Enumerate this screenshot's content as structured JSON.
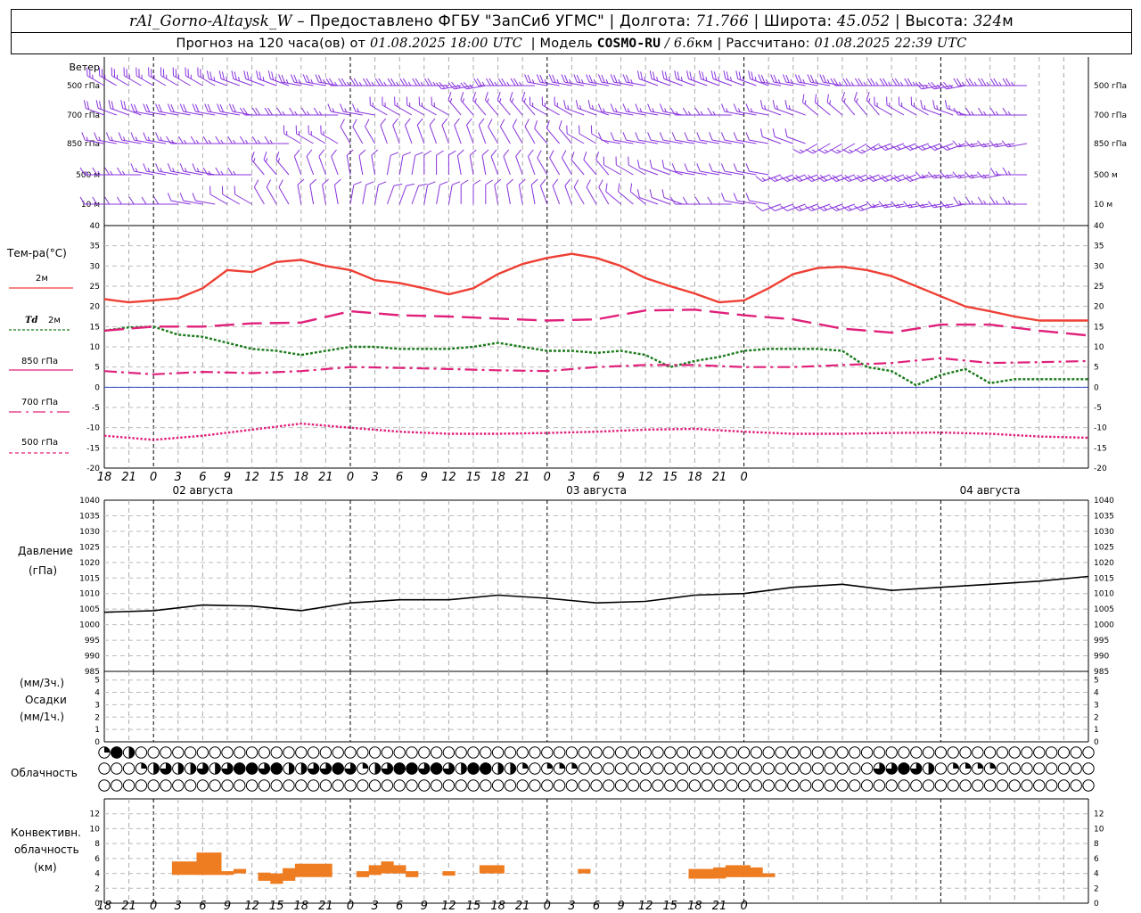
{
  "header": {
    "station": "rAl_Gorno-Altaysk_W",
    "provider": "– Предоставлено ФГБУ \"ЗапСиб УГМС\" |",
    "lon_label": "Долгота:",
    "lon": "71.766",
    "sep": "|",
    "lat_label": "Широта:",
    "lat": "45.052",
    "alt_label": "Высота:",
    "alt": "324",
    "alt_unit": "м",
    "fc_label": "Прогноз на 120 часа(ов) от",
    "fc_time": "01.08.2025 18:00 UTC",
    "model_label": "| Модель",
    "model": "COSMO-RU",
    "model_sep": "/",
    "res": "6.6",
    "res_unit": "км",
    "calc_label": "| Рассчитано:",
    "calc_time": "01.08.2025 22:39 UTC"
  },
  "colors": {
    "t2m": "#ee4035",
    "td2m": "#1a7a1a",
    "t850": "#e0207a",
    "t700": "#e0207a",
    "t500": "#e0207a",
    "barb": "#8833dd",
    "pressure": "#000000",
    "cloud": "#ee7d22",
    "zero": "#3344cc"
  },
  "labels": {
    "wind": "Ветер",
    "wind_levels": [
      "500 гПа",
      "700 гПа",
      "850 гПа",
      "500 м",
      "10  м"
    ],
    "temp": "Тем-ра(°C)",
    "t2m": "2м",
    "td_a": "Td",
    "td_b": "2м",
    "t850": "850 гПа",
    "t700": "700 гПа",
    "t500": "500 гПа",
    "pressure_a": "Давление",
    "pressure_b": "(гПа)",
    "precip_a": "(мм/3ч.)",
    "precip_b": "Осадки",
    "precip_c": "(мм/1ч.)",
    "clouds": "Облачность",
    "conv_a": "Конвективн.",
    "conv_b": "облачность",
    "conv_c": "(км)"
  },
  "x_ticks": [
    "18",
    "21",
    "0",
    "3",
    "6",
    "9",
    "12",
    "15",
    "18",
    "21",
    "0",
    "3",
    "6",
    "9",
    "12",
    "15",
    "18",
    "21",
    "0",
    "3",
    "6",
    "9",
    "12",
    "15",
    "18",
    "21",
    "0"
  ],
  "dates": [
    "02 августа",
    "03 августа",
    "04 августа"
  ],
  "chart_data": [
    {
      "type": "line",
      "title": "Тем-ра(°C)",
      "x": "UTC hours from 01.08.2025 18:00",
      "ylim": [
        -20,
        40
      ],
      "yticks": [
        "40",
        "35",
        "30",
        "25",
        "20",
        "15",
        "10",
        "5",
        "0",
        "-5",
        "-10",
        "-15",
        "-20"
      ],
      "series": [
        {
          "name": "2м",
          "x": [
            0,
            3,
            6,
            9,
            12,
            15,
            18,
            21,
            24,
            27,
            30,
            33,
            36,
            39,
            42,
            45,
            48,
            51,
            54,
            57,
            60,
            63,
            66,
            69,
            72,
            75,
            78,
            81,
            84,
            87,
            90,
            93,
            96,
            99,
            102,
            105,
            108,
            111,
            114,
            117,
            120
          ],
          "values": [
            21.8,
            21,
            21.5,
            22,
            24.5,
            29,
            28.5,
            31,
            31.5,
            30,
            29,
            26.5,
            25.8,
            24.5,
            23,
            24.5,
            28,
            30.5,
            32,
            33,
            32,
            30,
            27,
            25,
            23.2,
            21,
            21.5,
            24.5,
            28,
            29.5,
            29.8,
            29,
            27.5,
            25,
            22.5,
            20,
            18.8,
            17.5,
            16.5,
            16.5,
            16.5
          ]
        },
        {
          "name": "Td 2м",
          "x": [
            0,
            3,
            6,
            9,
            12,
            15,
            18,
            21,
            24,
            27,
            30,
            33,
            36,
            39,
            42,
            45,
            48,
            51,
            54,
            57,
            60,
            63,
            66,
            69,
            72,
            75,
            78,
            81,
            84,
            87,
            90,
            93,
            96,
            99,
            102,
            105,
            108,
            111,
            114,
            117,
            120
          ],
          "values": [
            14,
            14.8,
            15,
            13,
            12.5,
            11,
            9.5,
            9,
            8,
            9,
            10,
            10,
            9.5,
            9.5,
            9.5,
            10,
            11,
            10,
            9,
            9,
            8.5,
            9,
            8,
            5,
            6.5,
            7.5,
            9,
            9.5,
            9.5,
            9.5,
            9,
            5,
            4,
            0.5,
            3,
            4.5,
            1,
            2,
            2,
            2,
            2
          ]
        },
        {
          "name": "850 гПа",
          "x": [
            0,
            6,
            12,
            18,
            24,
            30,
            36,
            42,
            48,
            54,
            60,
            66,
            72,
            78,
            84,
            90,
            96,
            102,
            108,
            114,
            120
          ],
          "values": [
            14,
            15,
            15,
            15.8,
            16,
            18.8,
            17.8,
            17.5,
            17,
            16.5,
            16.8,
            19,
            19.2,
            17.8,
            16.8,
            14.5,
            13.5,
            15.5,
            15.5,
            14,
            12.8
          ]
        },
        {
          "name": "700 гПа",
          "x": [
            0,
            6,
            12,
            18,
            24,
            30,
            36,
            42,
            48,
            54,
            60,
            66,
            72,
            78,
            84,
            90,
            96,
            102,
            108,
            114,
            120
          ],
          "values": [
            4,
            3.2,
            3.8,
            3.5,
            4,
            5,
            4.8,
            4.5,
            4.2,
            4,
            5,
            5.5,
            5.5,
            5,
            5,
            5.5,
            6,
            7.2,
            6,
            6.2,
            6.5
          ]
        },
        {
          "name": "500 гПа",
          "x": [
            0,
            6,
            12,
            18,
            24,
            30,
            36,
            42,
            48,
            54,
            60,
            66,
            72,
            78,
            84,
            90,
            96,
            102,
            108,
            114,
            120
          ],
          "values": [
            -12,
            -13,
            -12,
            -10.5,
            -9,
            -10,
            -11,
            -11.5,
            -11.5,
            -11.3,
            -11,
            -10.5,
            -10.3,
            -11,
            -11.5,
            -11.5,
            -11.3,
            -11.2,
            -11.5,
            -12.2,
            -12.5
          ]
        }
      ]
    },
    {
      "type": "line",
      "title": "Давление (гПа)",
      "ylim": [
        985,
        1040
      ],
      "yticks": [
        "1040",
        "1035",
        "1030",
        "1025",
        "1020",
        "1015",
        "1010",
        "1005",
        "1000",
        "995",
        "990",
        "985"
      ],
      "series": [
        {
          "name": "Давление",
          "x": [
            0,
            6,
            12,
            18,
            24,
            30,
            36,
            42,
            48,
            54,
            60,
            66,
            72,
            78,
            84,
            90,
            96,
            102,
            108,
            114,
            120
          ],
          "values": [
            1004,
            1004.5,
            1006.3,
            1006,
            1004.5,
            1007,
            1008,
            1008,
            1009.5,
            1008.5,
            1007,
            1007.5,
            1009.5,
            1010,
            1012,
            1013,
            1011,
            1012,
            1013,
            1014,
            1015.5
          ]
        }
      ]
    },
    {
      "type": "bar",
      "title": "Осадки",
      "ylim": [
        0,
        5
      ],
      "yticks": [
        "5",
        "4",
        "3",
        "2",
        "1",
        "0"
      ],
      "values": []
    },
    {
      "type": "table",
      "title": "Облачность",
      "note": "three rows of circles (upper, middle, lower layers), fill fraction 0–1",
      "rows": [
        [
          0.25,
          1,
          0.5,
          0,
          0,
          0,
          0,
          0,
          0,
          0,
          0,
          0,
          0,
          0,
          0,
          0,
          0,
          0,
          0,
          0,
          0,
          0,
          0,
          0,
          0,
          0,
          0,
          0,
          0,
          0,
          0,
          0,
          0,
          0,
          0,
          0,
          0,
          0,
          0,
          0,
          0,
          0,
          0,
          0,
          0,
          0,
          0,
          0,
          0,
          0,
          0,
          0,
          0,
          0,
          0,
          0,
          0,
          0,
          0,
          0,
          0,
          0,
          0,
          0,
          0,
          0,
          0,
          0,
          0,
          0,
          0,
          0,
          0,
          0,
          0,
          0,
          0,
          0,
          0,
          0,
          0
        ],
        [
          0,
          0,
          0,
          0.25,
          0.5,
          0.75,
          0.5,
          0.5,
          0.75,
          0.5,
          0.75,
          1,
          1,
          0.75,
          1,
          0.5,
          0.5,
          0.75,
          0.75,
          1,
          0.75,
          0.25,
          0.5,
          0.75,
          1,
          1,
          0.75,
          1,
          0.75,
          0.5,
          1,
          1,
          0.5,
          0.5,
          0.25,
          0,
          0.25,
          0.25,
          0.25,
          0,
          0,
          0,
          0,
          0,
          0,
          0,
          0,
          0,
          0,
          0,
          0,
          0,
          0,
          0,
          0,
          0,
          0,
          0,
          0,
          0,
          0,
          0,
          0,
          0.75,
          0.75,
          1,
          0.75,
          0.5,
          0,
          0.25,
          0.25,
          0.25,
          0.25,
          0,
          0,
          0,
          0,
          0,
          0,
          0,
          0
        ],
        [
          0,
          0,
          0,
          0,
          0,
          0,
          0,
          0,
          0,
          0,
          0,
          0,
          0,
          0,
          0,
          0,
          0,
          0,
          0,
          0,
          0,
          0,
          0,
          0,
          0,
          0,
          0,
          0,
          0,
          0,
          0,
          0,
          0,
          0,
          0,
          0,
          0,
          0,
          0,
          0,
          0,
          0,
          0,
          0,
          0,
          0,
          0,
          0,
          0,
          0,
          0,
          0,
          0,
          0,
          0,
          0,
          0,
          0,
          0,
          0,
          0,
          0,
          0,
          0,
          0,
          0,
          0,
          0,
          0,
          0,
          0,
          0,
          0,
          0,
          0,
          0,
          0,
          0,
          0,
          0,
          0
        ]
      ]
    },
    {
      "type": "bar",
      "title": "Конвективн. облачность (км)",
      "ylim": [
        0,
        13
      ],
      "yticks": [
        "12",
        "10",
        "8",
        "6",
        "4",
        "2",
        "0"
      ],
      "bars": [
        [
          6,
          5.6,
          3.8
        ],
        [
          7,
          5.6,
          3.8
        ],
        [
          8,
          6.8,
          3.8
        ],
        [
          9,
          6.8,
          3.8
        ],
        [
          10,
          4.3,
          3.8
        ],
        [
          11,
          4.6,
          4
        ],
        [
          13,
          4.1,
          3
        ],
        [
          14,
          4,
          2.6
        ],
        [
          15,
          4.7,
          3
        ],
        [
          16,
          5.3,
          3.5
        ],
        [
          17,
          5.3,
          3.5
        ],
        [
          18,
          5.3,
          3.5
        ],
        [
          21,
          4.3,
          3.5
        ],
        [
          22,
          5.1,
          3.8
        ],
        [
          23,
          5.6,
          4
        ],
        [
          24,
          5.1,
          4
        ],
        [
          25,
          4.3,
          3.5
        ],
        [
          28,
          4.3,
          3.7
        ],
        [
          31,
          5.1,
          4
        ],
        [
          32,
          5.1,
          4
        ],
        [
          39,
          4.6,
          4
        ],
        [
          48,
          4.6,
          3.3
        ],
        [
          49,
          4.6,
          3.3
        ],
        [
          50,
          4.8,
          3.3
        ],
        [
          51,
          5.1,
          3.5
        ],
        [
          52,
          5.1,
          3.5
        ],
        [
          53,
          4.8,
          3.5
        ],
        [
          54,
          4,
          3.5
        ]
      ]
    }
  ],
  "wind_barbs": {
    "levels": [
      "500 гПа",
      "700 гПа",
      "850 гПа",
      "500 м",
      "10  м"
    ],
    "time_step_h": 1.5,
    "dir": [
      [
        300,
        300,
        300,
        290,
        290,
        280,
        270,
        270,
        270,
        260,
        270,
        280,
        280,
        280,
        290,
        290,
        290,
        280,
        280,
        270,
        270,
        260,
        270,
        270,
        280
      ],
      [
        290,
        280,
        280,
        280,
        270,
        270,
        280,
        300,
        300,
        320,
        320,
        300,
        290,
        280,
        280,
        270,
        280,
        290,
        310,
        320,
        300,
        290,
        270,
        270,
        270
      ],
      [
        280,
        280,
        270,
        270,
        270,
        300,
        330,
        340,
        340,
        340,
        330,
        320,
        300,
        280,
        280,
        280,
        280,
        290,
        240,
        240,
        250,
        250,
        260,
        260,
        270
      ],
      [
        270,
        280,
        280,
        270,
        320,
        340,
        350,
        10,
        360,
        350,
        340,
        330,
        320,
        300,
        290,
        280,
        280,
        250,
        250,
        250,
        250,
        260,
        260,
        270,
        270
      ],
      [
        270,
        270,
        280,
        300,
        330,
        350,
        10,
        20,
        10,
        360,
        350,
        340,
        330,
        310,
        290,
        270,
        280,
        250,
        250,
        250,
        260,
        260,
        270,
        270,
        260
      ]
    ],
    "spd": [
      [
        25,
        25,
        25,
        25,
        25,
        25,
        25,
        25,
        25,
        25,
        25,
        25,
        25,
        25,
        25,
        25,
        25,
        25,
        25,
        25,
        25,
        25,
        25,
        25,
        25
      ],
      [
        20,
        20,
        20,
        20,
        20,
        15,
        15,
        15,
        15,
        15,
        15,
        15,
        15,
        15,
        15,
        15,
        15,
        15,
        15,
        15,
        15,
        15,
        15,
        15,
        15
      ],
      [
        15,
        15,
        15,
        15,
        15,
        15,
        10,
        10,
        10,
        10,
        10,
        10,
        10,
        10,
        10,
        10,
        10,
        10,
        15,
        15,
        15,
        15,
        15,
        15,
        15
      ],
      [
        15,
        15,
        15,
        15,
        15,
        10,
        10,
        10,
        10,
        10,
        10,
        10,
        10,
        10,
        10,
        10,
        10,
        15,
        20,
        20,
        20,
        15,
        15,
        15,
        15
      ],
      [
        10,
        10,
        10,
        10,
        10,
        10,
        10,
        10,
        10,
        10,
        10,
        10,
        10,
        10,
        10,
        10,
        10,
        10,
        15,
        15,
        15,
        15,
        15,
        15,
        15
      ]
    ]
  }
}
